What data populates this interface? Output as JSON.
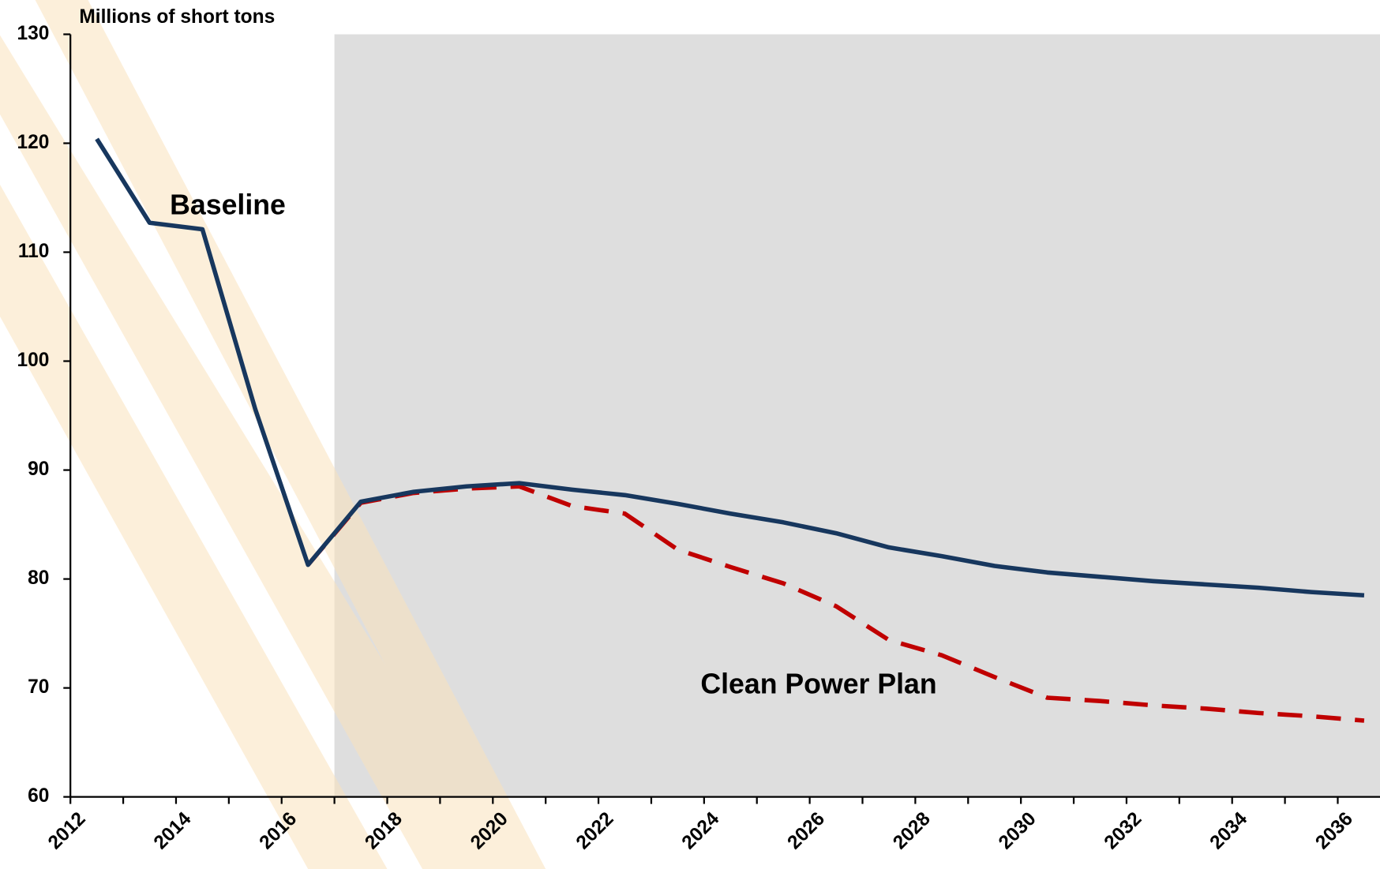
{
  "chart_data": {
    "type": "line",
    "y_label": "Millions of short tons",
    "annotations": [
      "Baseline",
      "Clean Power Plan"
    ],
    "x": [
      2012.5,
      2013.5,
      2014.5,
      2015.5,
      2016.5,
      2017.5,
      2018.5,
      2019.5,
      2020.5,
      2021.5,
      2022.5,
      2023.5,
      2024.5,
      2025.5,
      2026.5,
      2027.5,
      2028.5,
      2029.5,
      2030.5,
      2031.5,
      2032.5,
      2033.5,
      2034.5,
      2035.5,
      2036.5
    ],
    "series": [
      {
        "name": "Baseline",
        "color": "#17375e",
        "dash": false,
        "values": [
          120.4,
          112.7,
          112.1,
          95.6,
          81.3,
          87.1,
          88.0,
          88.5,
          88.8,
          88.2,
          87.7,
          86.9,
          86.0,
          85.2,
          84.2,
          82.9,
          82.1,
          81.2,
          80.6,
          80.2,
          79.8,
          79.5,
          79.2,
          78.8,
          78.5
        ]
      },
      {
        "name": "Clean Power Plan",
        "color": "#c00000",
        "dash": true,
        "values": [
          null,
          null,
          null,
          null,
          81.3,
          87.0,
          87.9,
          88.3,
          88.5,
          86.7,
          86.0,
          82.7,
          81.1,
          79.6,
          77.5,
          74.4,
          73.0,
          71.0,
          69.1,
          68.8,
          68.4,
          68.1,
          67.7,
          67.4,
          67.0
        ]
      }
    ],
    "xlim": [
      2012,
      2036.8
    ],
    "xticks": [
      2012,
      2014,
      2016,
      2018,
      2020,
      2022,
      2024,
      2026,
      2028,
      2030,
      2032,
      2034,
      2036
    ],
    "xminorticks": [
      2013,
      2015,
      2017,
      2019,
      2021,
      2023,
      2025,
      2027,
      2029,
      2031,
      2033,
      2035
    ],
    "ylim": [
      60,
      130
    ],
    "yticks": [
      60,
      70,
      80,
      90,
      100,
      110,
      120,
      130
    ],
    "shade_xlim": [
      2017,
      2036.8
    ],
    "shade_color": "#dedede"
  }
}
